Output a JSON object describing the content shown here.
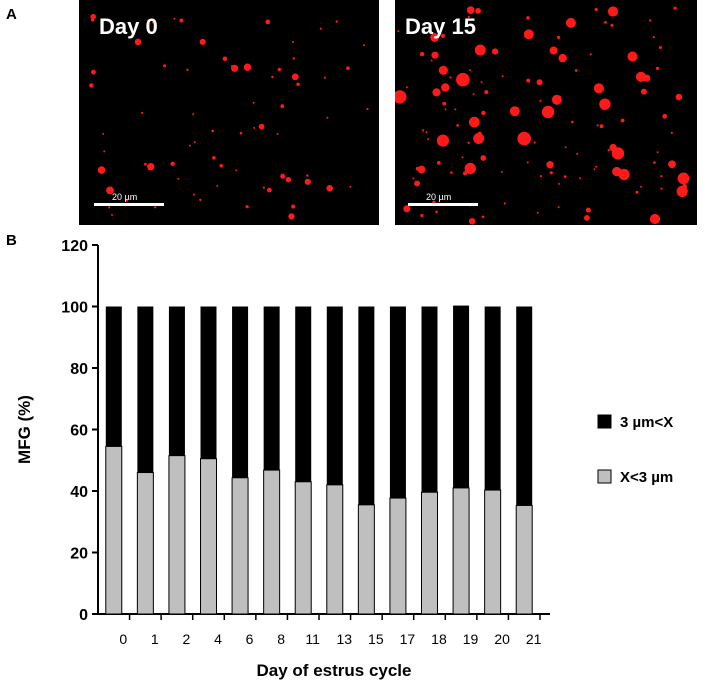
{
  "panel_a": {
    "letter": "A",
    "images": [
      {
        "label": "Day 0",
        "scale_label": "20 µm"
      },
      {
        "label": "Day 15",
        "scale_label": "20 µm"
      }
    ]
  },
  "panel_b": {
    "letter": "B"
  },
  "colors": {
    "upper_series": "#000000",
    "lower_series": "#bfbfbf",
    "droplet": "#ff1a1a",
    "micro_bg": "#000000"
  },
  "chart_data": {
    "type": "bar",
    "stacked": true,
    "title": "",
    "xlabel": "Day of estrus cycle",
    "ylabel": "MFG (%)",
    "ylim": [
      0,
      120
    ],
    "yticks": [
      0,
      20,
      40,
      60,
      80,
      100,
      120
    ],
    "categories": [
      "0",
      "1",
      "2",
      "4",
      "6",
      "8",
      "11",
      "13",
      "15",
      "17",
      "18",
      "19",
      "20",
      "21"
    ],
    "series": [
      {
        "name": "X<3 µm",
        "values": [
          54.5,
          46,
          51.5,
          50.5,
          44.3,
          46.8,
          43,
          42,
          35.5,
          37.7,
          39.6,
          41,
          40.3,
          35.3
        ]
      },
      {
        "name": "3 µm<X",
        "values": [
          45.5,
          54,
          48.5,
          49.5,
          55.7,
          53.2,
          57,
          58,
          64.5,
          62.3,
          60.4,
          59.3,
          59.7,
          64.7
        ]
      }
    ],
    "legend": [
      {
        "label": "3 µm<X",
        "color": "#000000"
      },
      {
        "label": "X<3 µm",
        "color": "#bfbfbf"
      }
    ],
    "legend_position": "right",
    "grid": false
  }
}
